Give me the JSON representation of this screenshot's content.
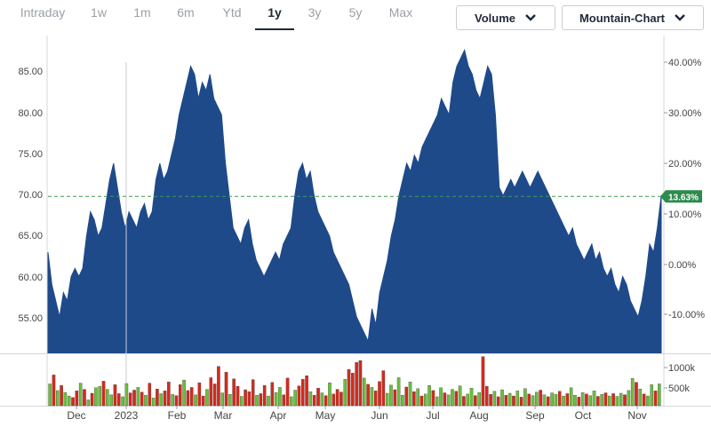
{
  "toolbar": {
    "ranges": [
      "Intraday",
      "1w",
      "1m",
      "6m",
      "Ytd",
      "1y",
      "3y",
      "5y",
      "Max"
    ],
    "active_range": "1y",
    "volume_label": "Volume",
    "chart_type_label": "Mountain-Chart",
    "icons": [
      "chevron-down-icon"
    ]
  },
  "colors": {
    "area_fill": "#1e4a8a",
    "volume_up": "#6bbf3a",
    "volume_down": "#d42a1c",
    "reference_line": "#3f9a57",
    "current_badge": "#2e8b4e"
  },
  "chart_data": [
    {
      "type": "area",
      "title": "",
      "y_left_ticks": [
        "85.00",
        "80.00",
        "75.00",
        "70.00",
        "65.00",
        "60.00",
        "55.00"
      ],
      "y_left_range": [
        50.5,
        88.6
      ],
      "y_right_ticks": [
        "40.00%",
        "30.00%",
        "20.00%",
        "10.00%",
        "0.00%",
        "-10.00%"
      ],
      "x_tick_labels": [
        "Dec",
        "2023",
        "Feb",
        "Mar",
        "Apr",
        "May",
        "Jun",
        "Jul",
        "Aug",
        "Sep",
        "Oct",
        "Nov"
      ],
      "reference_value": 69.9,
      "current_change_label": "13.63%",
      "grid": false,
      "series": [
        {
          "values": [
            63,
            59,
            57,
            55,
            58,
            57,
            60,
            61,
            60,
            61,
            65,
            68,
            67,
            65,
            66,
            69,
            72,
            74,
            71,
            68,
            66,
            68,
            67,
            66,
            68,
            69,
            67,
            68,
            72,
            74,
            72,
            73,
            75,
            77,
            80,
            82,
            84,
            86,
            85,
            82,
            84,
            83,
            85,
            82,
            81,
            80,
            74,
            70,
            66,
            65,
            64,
            66,
            67,
            64,
            62,
            61,
            60,
            61,
            62,
            63,
            62,
            64,
            65,
            66,
            70,
            73,
            74,
            72,
            73,
            70,
            68,
            67,
            66,
            65,
            63,
            62,
            61,
            60,
            59,
            57,
            55,
            54,
            53,
            52,
            56,
            54,
            58,
            60,
            62,
            65,
            67,
            70,
            72,
            74,
            73,
            75,
            74,
            76,
            77,
            78,
            79,
            80,
            82,
            81,
            80,
            84,
            86,
            87,
            88,
            86,
            85,
            83,
            82,
            84,
            86,
            85,
            80,
            71,
            70,
            71,
            72,
            71,
            72,
            73,
            72,
            71,
            72,
            73,
            72,
            71,
            70,
            69,
            68,
            67,
            66,
            65,
            66,
            64,
            63,
            62,
            63,
            64,
            62,
            63,
            61,
            60,
            61,
            59,
            58,
            60,
            59,
            57,
            56,
            55,
            57,
            60,
            64,
            63,
            66,
            70
          ]
        }
      ]
    },
    {
      "type": "bar",
      "title": "",
      "y_right_ticks": [
        "1000k",
        "500k"
      ],
      "y_range": [
        0,
        1300000
      ],
      "series": [
        {
          "values": [
            560000,
            790000,
            390000,
            520000,
            340000,
            250000,
            210000,
            380000,
            580000,
            420000,
            150000,
            320000,
            460000,
            500000,
            630000,
            420000,
            280000,
            540000,
            310000,
            230000,
            570000,
            330000,
            400000,
            470000,
            350000,
            270000,
            580000,
            200000,
            430000,
            310000,
            380000,
            610000,
            290000,
            260000,
            540000,
            660000,
            390000,
            470000,
            280000,
            590000,
            250000,
            420000,
            720000,
            560000,
            1010000,
            330000,
            860000,
            290000,
            690000,
            500000,
            240000,
            410000,
            360000,
            670000,
            270000,
            310000,
            520000,
            250000,
            600000,
            340000,
            470000,
            280000,
            710000,
            230000,
            400000,
            510000,
            680000,
            770000,
            360000,
            270000,
            450000,
            330000,
            260000,
            590000,
            300000,
            420000,
            350000,
            680000,
            930000,
            840000,
            1110000,
            1160000,
            710000,
            550000,
            470000,
            380000,
            620000,
            900000,
            320000,
            530000,
            410000,
            720000,
            270000,
            480000,
            610000,
            360000,
            440000,
            250000,
            300000,
            520000,
            390000,
            230000,
            460000,
            330000,
            280000,
            420000,
            370000,
            510000,
            240000,
            300000,
            450000,
            260000,
            340000,
            1260000,
            500000,
            290000,
            370000,
            230000,
            410000,
            270000,
            320000,
            250000,
            380000,
            220000,
            440000,
            300000,
            260000,
            350000,
            400000,
            280000,
            230000,
            330000,
            290000,
            370000,
            250000,
            310000,
            460000,
            270000,
            220000,
            340000,
            300000,
            260000,
            380000,
            240000,
            290000,
            330000,
            250000,
            310000,
            240000,
            320000,
            280000,
            390000,
            700000,
            600000,
            430000,
            300000,
            250000,
            540000,
            380000,
            560000
          ],
          "direction": [
            "u",
            "d",
            "u",
            "d",
            "u",
            "u",
            "d",
            "d",
            "u",
            "d",
            "u",
            "d",
            "u",
            "u",
            "d",
            "u",
            "u",
            "d",
            "d",
            "u",
            "u",
            "d",
            "d",
            "u",
            "d",
            "u",
            "d",
            "u",
            "d",
            "u",
            "d",
            "d",
            "u",
            "d",
            "d",
            "u",
            "d",
            "d",
            "u",
            "d",
            "d",
            "u",
            "d",
            "d",
            "d",
            "u",
            "d",
            "u",
            "d",
            "d",
            "u",
            "d",
            "d",
            "d",
            "u",
            "d",
            "d",
            "u",
            "d",
            "u",
            "u",
            "d",
            "d",
            "u",
            "u",
            "d",
            "d",
            "d",
            "u",
            "d",
            "d",
            "u",
            "d",
            "u",
            "d",
            "d",
            "d",
            "u",
            "d",
            "d",
            "d",
            "d",
            "u",
            "d",
            "u",
            "d",
            "d",
            "d",
            "u",
            "u",
            "d",
            "u",
            "u",
            "d",
            "u",
            "d",
            "u",
            "d",
            "u",
            "u",
            "d",
            "u",
            "u",
            "d",
            "u",
            "u",
            "d",
            "u",
            "d",
            "u",
            "u",
            "d",
            "u",
            "d",
            "d",
            "d",
            "u",
            "d",
            "u",
            "d",
            "u",
            "d",
            "u",
            "d",
            "u",
            "d",
            "u",
            "u",
            "d",
            "u",
            "d",
            "u",
            "u",
            "d",
            "u",
            "d",
            "u",
            "u",
            "d",
            "u",
            "d",
            "u",
            "u",
            "d",
            "u",
            "d",
            "u",
            "d",
            "u",
            "u",
            "d",
            "u",
            "u",
            "d",
            "u",
            "d",
            "u",
            "u",
            "d",
            "u"
          ]
        }
      ]
    }
  ]
}
